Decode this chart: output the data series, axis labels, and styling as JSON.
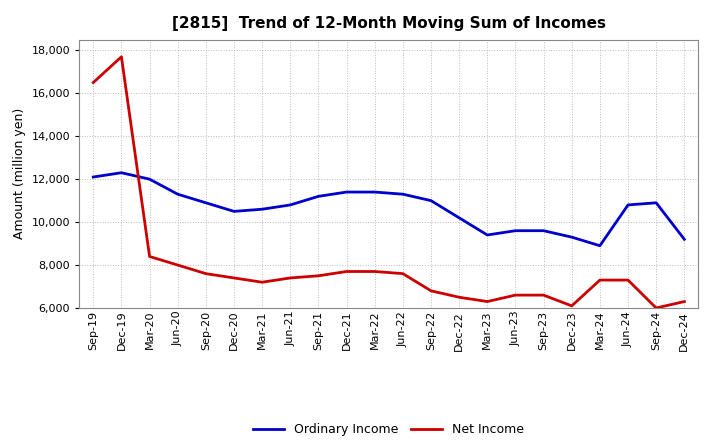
{
  "title": "[2815]  Trend of 12-Month Moving Sum of Incomes",
  "ylabel": "Amount (million yen)",
  "ylim": [
    6000,
    18500
  ],
  "yticks": [
    6000,
    8000,
    10000,
    12000,
    14000,
    16000,
    18000
  ],
  "x_labels": [
    "Sep-19",
    "Dec-19",
    "Mar-20",
    "Jun-20",
    "Sep-20",
    "Dec-20",
    "Mar-21",
    "Jun-21",
    "Sep-21",
    "Dec-21",
    "Mar-22",
    "Jun-22",
    "Sep-22",
    "Dec-22",
    "Mar-23",
    "Jun-23",
    "Sep-23",
    "Dec-23",
    "Mar-24",
    "Jun-24",
    "Sep-24",
    "Dec-24"
  ],
  "ordinary_income": [
    12100,
    12300,
    12000,
    11300,
    10900,
    10500,
    10600,
    10800,
    11200,
    11400,
    11400,
    11300,
    11000,
    10200,
    9400,
    9600,
    9600,
    9300,
    8900,
    10800,
    10900,
    9200
  ],
  "net_income": [
    16500,
    17700,
    8400,
    8000,
    7600,
    7400,
    7200,
    7400,
    7500,
    7700,
    7700,
    7600,
    6800,
    6500,
    6300,
    6600,
    6600,
    6100,
    7300,
    7300,
    6000,
    6300
  ],
  "ordinary_color": "#0000cc",
  "net_color": "#cc0000",
  "bg_color": "#ffffff",
  "grid_color": "#aaaaaa",
  "title_fontsize": 11,
  "legend_labels": [
    "Ordinary Income",
    "Net Income"
  ]
}
